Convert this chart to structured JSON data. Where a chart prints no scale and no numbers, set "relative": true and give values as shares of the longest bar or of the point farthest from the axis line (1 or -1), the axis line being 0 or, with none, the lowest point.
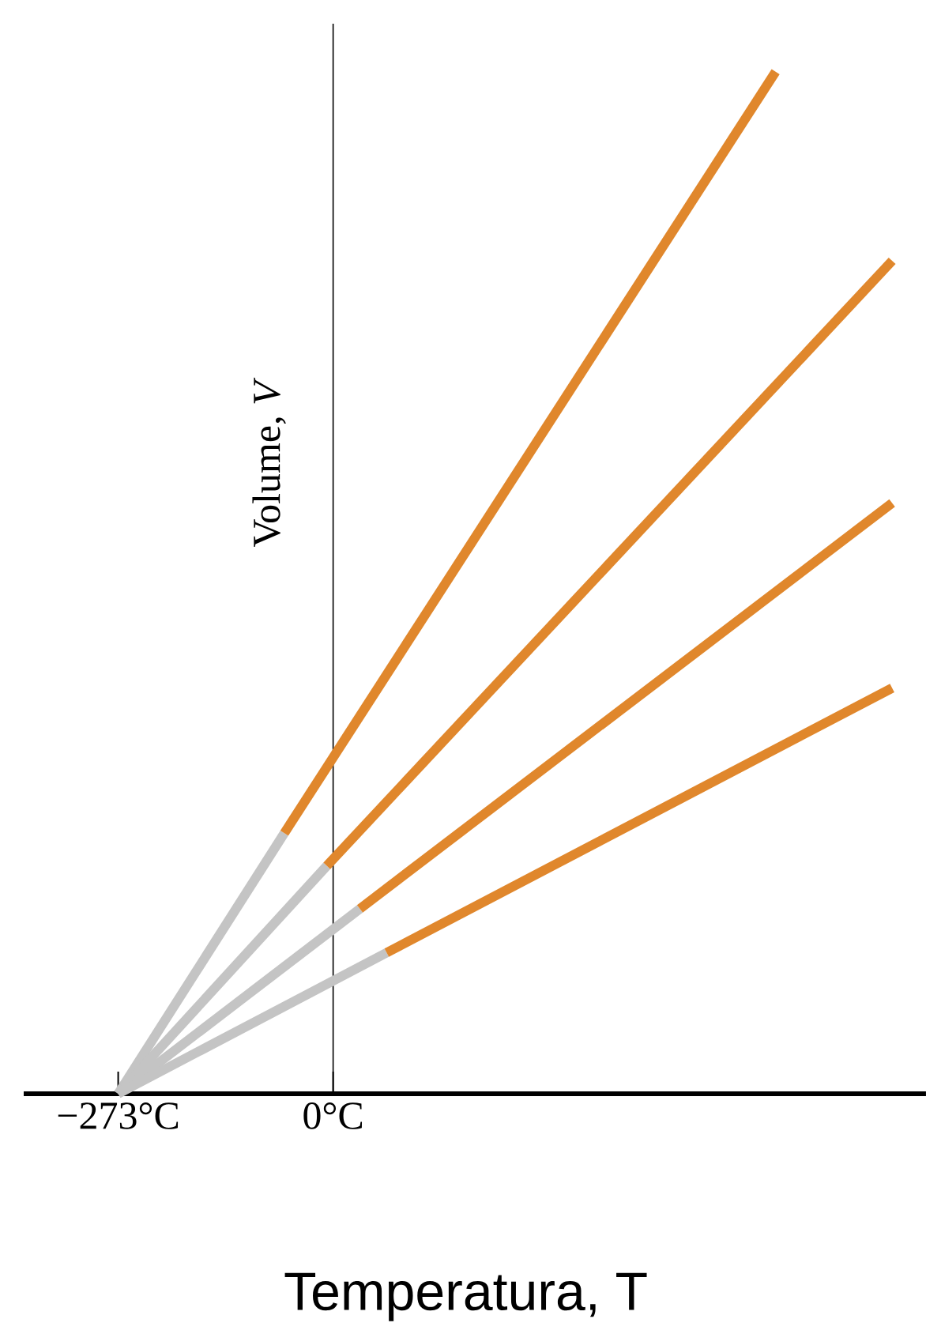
{
  "chart_data": {
    "type": "line",
    "relative": true,
    "xlabel": "Temperatura, T",
    "ylabel": "Volume, *V*",
    "marker": "none",
    "xlim": [
      -393,
      753
    ],
    "xticks": [
      {
        "value": -273,
        "label": "−273°C"
      },
      {
        "value": 0,
        "label": "0°C"
      }
    ],
    "series": [
      {
        "color": "#c4c4c4",
        "x": [
          -273,
          -62
        ],
        "values": [
          0,
          0.255
        ]
      },
      {
        "color": "#e0872c",
        "x": [
          -62,
          562
        ],
        "values": [
          0.255,
          1
        ]
      },
      {
        "color": "#c4c4c4",
        "x": [
          -273,
          -8
        ],
        "values": [
          0,
          0.223
        ]
      },
      {
        "color": "#e0872c",
        "x": [
          -8,
          710
        ],
        "values": [
          0.223,
          0.815
        ]
      },
      {
        "color": "#c4c4c4",
        "x": [
          -273,
          34
        ],
        "values": [
          0,
          0.181
        ]
      },
      {
        "color": "#e0872c",
        "x": [
          34,
          710
        ],
        "values": [
          0.181,
          0.578
        ]
      },
      {
        "color": "#c4c4c4",
        "x": [
          -273,
          68
        ],
        "values": [
          0,
          0.138
        ]
      },
      {
        "color": "#e0872c",
        "x": [
          68,
          710
        ],
        "values": [
          0.138,
          0.397
        ]
      }
    ]
  }
}
